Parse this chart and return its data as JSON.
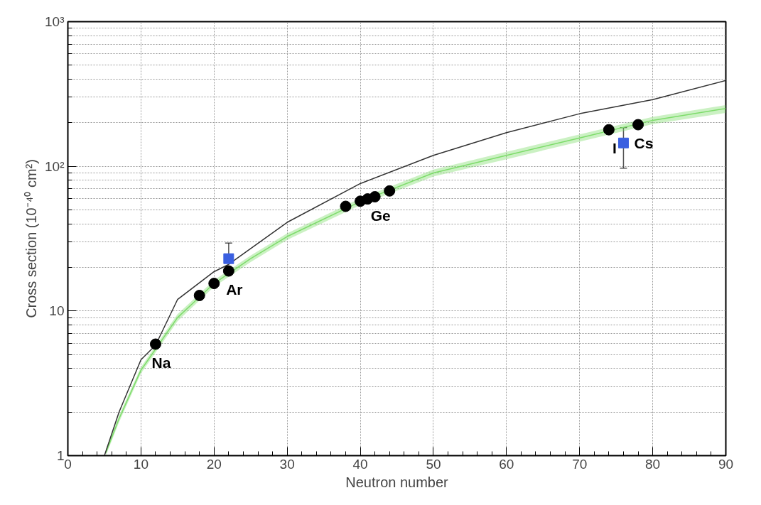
{
  "chart_data": {
    "type": "line",
    "xlabel": "Neutron number",
    "ylabel": "Cross section (10⁻⁴⁰ cm²)",
    "xlim": [
      0,
      90
    ],
    "ylim": [
      1,
      1000
    ],
    "log": "y",
    "grid": true,
    "xticks": [
      0,
      10,
      20,
      30,
      40,
      50,
      60,
      70,
      80,
      90
    ],
    "yticks": [
      1,
      10,
      {
        "value": 100,
        "label": "10²"
      },
      {
        "value": 1000,
        "label": "10³"
      }
    ],
    "series": [
      {
        "color": "#7ddc6a",
        "x": [
          5.2,
          7,
          10,
          15,
          20,
          25,
          30,
          40,
          50,
          60,
          70,
          80,
          90
        ],
        "values": [
          1.05,
          1.8,
          3.9,
          9.0,
          15.5,
          23,
          32.7,
          57,
          90,
          119,
          157,
          208,
          251
        ],
        "lower": [
          1.0,
          1.7,
          3.7,
          8.5,
          14.7,
          21.8,
          31,
          54,
          85,
          112,
          148,
          196,
          234
        ],
        "upper": [
          1.1,
          1.9,
          4.1,
          9.5,
          16.3,
          24.2,
          34.4,
          60,
          95,
          126,
          166,
          220,
          265
        ]
      },
      {
        "color": "#333333",
        "marker": "none",
        "x": [
          5,
          7,
          10,
          12,
          15,
          20,
          22,
          30,
          40,
          50,
          60,
          70,
          80,
          90
        ],
        "values": [
          1.0,
          2.0,
          4.6,
          5.8,
          12,
          18.7,
          21,
          41,
          76,
          119,
          171,
          231,
          289,
          392
        ]
      },
      {
        "type": "scatter",
        "color": "#000000",
        "x": [
          12,
          18,
          20,
          22,
          38,
          40,
          41,
          42,
          44,
          74,
          78
        ],
        "values": [
          5.9,
          12.8,
          15.5,
          18.9,
          52.9,
          57.4,
          59.5,
          61.6,
          67.6,
          179,
          194
        ]
      },
      {
        "type": "scatter",
        "color": "#3a5fe0",
        "marker": "square",
        "x": [
          22,
          76
        ],
        "values": [
          23,
          145
        ],
        "errors": [
          [
            23,
            29.5
          ],
          [
            97,
            185
          ]
        ]
      }
    ],
    "annotations": [
      {
        "text": "Na",
        "x": 12,
        "y": 5.9
      },
      {
        "text": "Ar",
        "x": 22,
        "y": 18.9
      },
      {
        "text": "Ge",
        "x": 42,
        "y": 61.6
      },
      {
        "text": "I",
        "x": 74,
        "y": 179
      },
      {
        "text": "Cs",
        "x": 78,
        "y": 194
      }
    ]
  }
}
